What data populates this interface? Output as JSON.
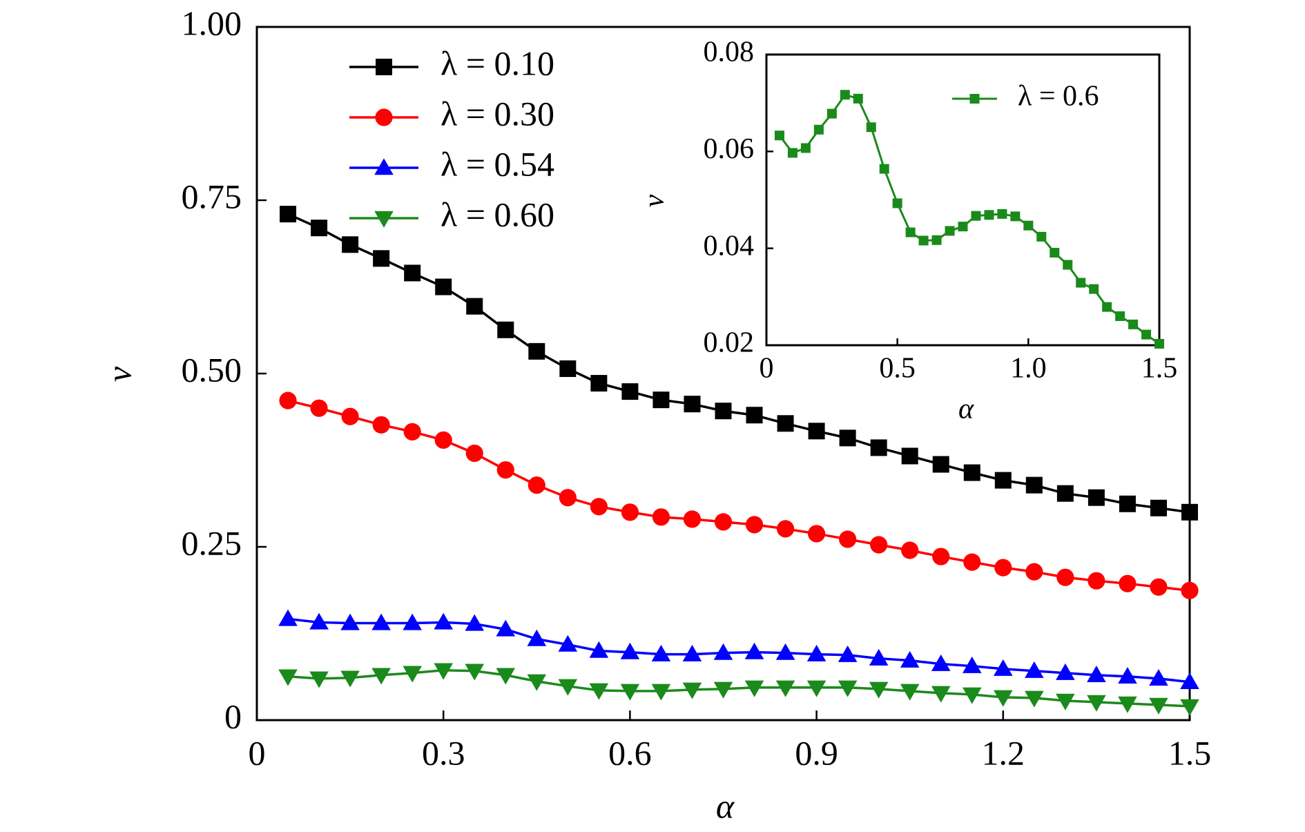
{
  "chart_data": [
    {
      "type": "line",
      "xlabel": "α",
      "ylabel": "v",
      "x": [
        0.05,
        0.1,
        0.15,
        0.2,
        0.25,
        0.3,
        0.35,
        0.4,
        0.45,
        0.5,
        0.55,
        0.6,
        0.65,
        0.7,
        0.75,
        0.8,
        0.85,
        0.9,
        0.95,
        1.0,
        1.05,
        1.1,
        1.15,
        1.2,
        1.25,
        1.3,
        1.35,
        1.4,
        1.45,
        1.5
      ],
      "xlim": [
        0,
        1.5
      ],
      "xticks": [
        0,
        0.3,
        0.6,
        0.9,
        1.2,
        1.5
      ],
      "ylim": [
        0,
        1
      ],
      "yticks": [
        0,
        0.25,
        {
          "value": 0.5,
          "label": "0.50"
        },
        0.75,
        {
          "value": 1,
          "label": "1.00"
        }
      ],
      "legend": "upper left",
      "series": [
        {
          "name": "λ = 0.10",
          "color": "#000000",
          "marker": "square",
          "values": [
            0.73,
            0.71,
            0.686,
            0.666,
            0.645,
            0.625,
            0.597,
            0.563,
            0.532,
            0.507,
            0.486,
            0.474,
            0.462,
            0.456,
            0.446,
            0.44,
            0.428,
            0.417,
            0.407,
            0.393,
            0.381,
            0.369,
            0.357,
            0.346,
            0.339,
            0.327,
            0.321,
            0.312,
            0.306,
            0.3
          ]
        },
        {
          "name": "λ = 0.30",
          "color": "#ff0000",
          "marker": "circle",
          "values": [
            0.461,
            0.45,
            0.438,
            0.426,
            0.416,
            0.404,
            0.385,
            0.361,
            0.339,
            0.321,
            0.308,
            0.3,
            0.293,
            0.29,
            0.286,
            0.282,
            0.276,
            0.269,
            0.261,
            0.253,
            0.245,
            0.236,
            0.228,
            0.22,
            0.214,
            0.206,
            0.201,
            0.197,
            0.192,
            0.187
          ]
        },
        {
          "name": "λ = 0.54",
          "color": "#0000ff",
          "marker": "triangle-up",
          "values": [
            0.146,
            0.141,
            0.14,
            0.14,
            0.14,
            0.141,
            0.139,
            0.131,
            0.117,
            0.109,
            0.1,
            0.098,
            0.095,
            0.095,
            0.097,
            0.098,
            0.097,
            0.095,
            0.094,
            0.089,
            0.086,
            0.081,
            0.078,
            0.074,
            0.071,
            0.068,
            0.065,
            0.063,
            0.06,
            0.055
          ]
        },
        {
          "name": "λ = 0.60",
          "color": "#1a8a1a",
          "marker": "triangle-down",
          "values": [
            0.063,
            0.06,
            0.061,
            0.065,
            0.068,
            0.072,
            0.071,
            0.065,
            0.056,
            0.049,
            0.043,
            0.042,
            0.042,
            0.044,
            0.045,
            0.047,
            0.047,
            0.047,
            0.047,
            0.045,
            0.042,
            0.039,
            0.037,
            0.033,
            0.032,
            0.028,
            0.026,
            0.024,
            0.022,
            0.02
          ]
        }
      ]
    },
    {
      "type": "line",
      "xlabel": "α",
      "ylabel": "v",
      "x": [
        0.05,
        0.1,
        0.15,
        0.2,
        0.25,
        0.3,
        0.35,
        0.4,
        0.45,
        0.5,
        0.55,
        0.6,
        0.65,
        0.7,
        0.75,
        0.8,
        0.85,
        0.9,
        0.95,
        1.0,
        1.05,
        1.1,
        1.15,
        1.2,
        1.25,
        1.3,
        1.35,
        1.4,
        1.45,
        1.5
      ],
      "xlim": [
        0,
        1.5
      ],
      "xticks": [
        0,
        0.5,
        {
          "value": 1,
          "label": "1.0"
        },
        1.5
      ],
      "ylim": [
        0.02,
        0.08
      ],
      "yticks": [
        0.02,
        0.04,
        0.06,
        0.08
      ],
      "legend": "upper right",
      "series": [
        {
          "name": "λ = 0.6",
          "color": "#1a8a1a",
          "marker": "square",
          "values": [
            0.0633,
            0.0597,
            0.0607,
            0.0645,
            0.0678,
            0.0717,
            0.0709,
            0.065,
            0.0564,
            0.0493,
            0.0433,
            0.0416,
            0.0417,
            0.0436,
            0.0445,
            0.0467,
            0.0469,
            0.0471,
            0.0466,
            0.0447,
            0.0424,
            0.0391,
            0.0366,
            0.0329,
            0.0316,
            0.0279,
            0.026,
            0.0243,
            0.0222,
            0.0203
          ]
        }
      ]
    }
  ]
}
